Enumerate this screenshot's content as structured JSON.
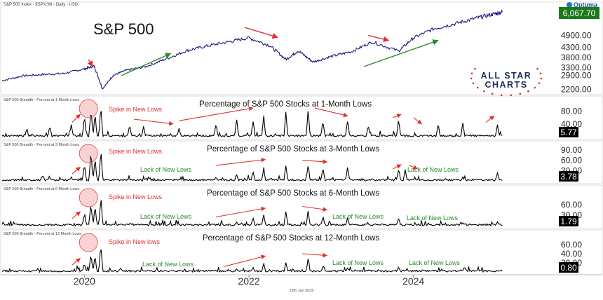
{
  "header": {
    "source_line": "S&P 500 Index - $SPX.WI - Daily - USD",
    "brand": "Optuma",
    "footer_date": "29th Jan 2025",
    "logo_line1": "ALL STAR",
    "logo_line2": "CHARTS"
  },
  "colors": {
    "price_line": "#1a1a7a",
    "breadth_line": "#000000",
    "annotation_red": "#e03030",
    "annotation_green": "#2a8a2a",
    "last_price_bg": "#1a7a1a",
    "last_value_bg": "#000000",
    "logo_navy": "#1f2f5a",
    "logo_red": "#d23030"
  },
  "x_axis": {
    "labels": [
      "2020",
      "2022",
      "2024"
    ],
    "label_positions": [
      2020.0,
      2022.0,
      2024.0
    ],
    "range": [
      2019.0,
      2025.75
    ]
  },
  "chart_data": [
    {
      "type": "line",
      "panel": "price",
      "header": "S&P 500 Index - $SPX.WI - Daily - USD",
      "title": "S&P 500",
      "ylim": [
        2050,
        6250
      ],
      "yticks": [
        "4900.00",
        "4300.00",
        "3800.00",
        "3300.00",
        "2900.00",
        "2200.00"
      ],
      "ytick_values": [
        4900,
        4300,
        3800,
        3300,
        2900,
        2200
      ],
      "last_value": "6,067.70",
      "x": [
        2019.0,
        2019.25,
        2019.5,
        2019.75,
        2020.0,
        2020.12,
        2020.22,
        2020.35,
        2020.5,
        2020.75,
        2021.0,
        2021.25,
        2021.5,
        2021.75,
        2022.0,
        2022.25,
        2022.45,
        2022.6,
        2022.78,
        2023.0,
        2023.25,
        2023.5,
        2023.82,
        2024.0,
        2024.25,
        2024.5,
        2024.75,
        2024.95,
        2025.08
      ],
      "y": [
        2640,
        2880,
        2950,
        3000,
        3230,
        3370,
        2240,
        2900,
        3150,
        3350,
        3740,
        4150,
        4380,
        4580,
        4780,
        4400,
        3700,
        4130,
        3580,
        3850,
        4100,
        4580,
        4120,
        4780,
        5240,
        5480,
        5750,
        5950,
        6067
      ],
      "annotations": {
        "arrows": [
          {
            "color": "red",
            "from": [
              2020.05,
              3700
            ],
            "to": [
              2020.1,
              3350
            ]
          },
          {
            "color": "green",
            "from": [
              2020.45,
              2900
            ],
            "to": [
              2021.05,
              4000
            ]
          },
          {
            "color": "red",
            "from": [
              2021.95,
              5300
            ],
            "to": [
              2022.35,
              4800
            ]
          },
          {
            "color": "red",
            "from": [
              2023.45,
              4900
            ],
            "to": [
              2023.7,
              4650
            ]
          },
          {
            "color": "green",
            "from": [
              2023.4,
              3350
            ],
            "to": [
              2024.3,
              4650
            ]
          }
        ]
      }
    },
    {
      "type": "line",
      "panel": "breadth_1m",
      "header": "S&P 500 Breadth - Percent at 1 Month Lows",
      "title": "Percentage of S&P 500 Stocks at 1-Month Lows",
      "ylim": [
        0,
        110
      ],
      "yticks": [
        "80.00",
        "40.00"
      ],
      "ytick_values": [
        80,
        40
      ],
      "last_value": "5.77",
      "spikes": [
        {
          "x": 2020.0,
          "y": 70
        },
        {
          "x": 2020.08,
          "y": 96
        },
        {
          "x": 2020.13,
          "y": 80
        },
        {
          "x": 2020.2,
          "y": 102
        },
        {
          "x": 2019.58,
          "y": 40
        },
        {
          "x": 2019.3,
          "y": 30
        },
        {
          "x": 2019.84,
          "y": 42
        },
        {
          "x": 2020.55,
          "y": 42
        },
        {
          "x": 2020.72,
          "y": 35
        },
        {
          "x": 2021.15,
          "y": 30
        },
        {
          "x": 2021.6,
          "y": 48
        },
        {
          "x": 2021.85,
          "y": 60
        },
        {
          "x": 2022.05,
          "y": 63
        },
        {
          "x": 2022.18,
          "y": 70
        },
        {
          "x": 2022.45,
          "y": 82
        },
        {
          "x": 2022.72,
          "y": 98
        },
        {
          "x": 2022.9,
          "y": 58
        },
        {
          "x": 2023.2,
          "y": 60
        },
        {
          "x": 2023.45,
          "y": 38
        },
        {
          "x": 2023.82,
          "y": 60
        },
        {
          "x": 2024.3,
          "y": 45
        },
        {
          "x": 2024.6,
          "y": 52
        },
        {
          "x": 2025.02,
          "y": 45
        }
      ],
      "labels": [
        {
          "text": "Spike in New Lows",
          "color": "red"
        }
      ],
      "circle_x": 2020.05,
      "arrows": [
        {
          "color": "red",
          "from": [
            2019.85,
            45
          ],
          "to": [
            2019.95,
            70
          ]
        },
        {
          "color": "red",
          "from": [
            2020.6,
            55
          ],
          "to": [
            2021.08,
            40
          ]
        },
        {
          "color": "red",
          "from": [
            2021.15,
            50
          ],
          "to": [
            2022.05,
            90
          ]
        },
        {
          "color": "red",
          "from": [
            2022.8,
            90
          ],
          "to": [
            2023.2,
            65
          ]
        },
        {
          "color": "red",
          "from": [
            2023.75,
            60
          ],
          "to": [
            2023.85,
            70
          ]
        },
        {
          "color": "red",
          "from": [
            2024.0,
            60
          ],
          "to": [
            2024.1,
            40
          ]
        },
        {
          "color": "red",
          "from": [
            2024.88,
            45
          ],
          "to": [
            2024.98,
            65
          ]
        }
      ]
    },
    {
      "type": "line",
      "panel": "breadth_3m",
      "header": "S&P 500 Breadth - Percent at 3 Month Lows",
      "title": "Percentage of S&P 500 Stocks at 3-Month Lows",
      "ylim": [
        0,
        100
      ],
      "yticks": [
        "90.00",
        "60.00",
        "30.00"
      ],
      "ytick_values": [
        90,
        60,
        30
      ],
      "last_value": "3.78",
      "spikes": [
        {
          "x": 2020.0,
          "y": 55
        },
        {
          "x": 2020.08,
          "y": 88
        },
        {
          "x": 2020.13,
          "y": 70
        },
        {
          "x": 2020.2,
          "y": 96
        },
        {
          "x": 2019.58,
          "y": 10
        },
        {
          "x": 2019.84,
          "y": 12
        },
        {
          "x": 2021.6,
          "y": 12
        },
        {
          "x": 2021.85,
          "y": 22
        },
        {
          "x": 2022.05,
          "y": 30
        },
        {
          "x": 2022.18,
          "y": 40
        },
        {
          "x": 2022.45,
          "y": 50
        },
        {
          "x": 2022.72,
          "y": 55
        },
        {
          "x": 2022.9,
          "y": 40
        },
        {
          "x": 2023.2,
          "y": 45
        },
        {
          "x": 2023.82,
          "y": 40
        },
        {
          "x": 2023.9,
          "y": 35
        },
        {
          "x": 2024.6,
          "y": 12
        },
        {
          "x": 2025.02,
          "y": 25
        }
      ],
      "labels": [
        {
          "text": "Spike in New Lows",
          "color": "red"
        },
        {
          "text": "Lack of New Lows",
          "color": "green"
        },
        {
          "text": "Lack of New Lows",
          "color": "green"
        }
      ],
      "circle_x": 2020.05,
      "arrows": [
        {
          "color": "red",
          "from": [
            2019.85,
            20
          ],
          "to": [
            2019.95,
            40
          ]
        },
        {
          "color": "red",
          "from": [
            2021.6,
            45
          ],
          "to": [
            2022.2,
            62
          ]
        },
        {
          "color": "red",
          "from": [
            2022.65,
            60
          ],
          "to": [
            2022.95,
            55
          ]
        },
        {
          "color": "red",
          "from": [
            2023.75,
            35
          ],
          "to": [
            2023.85,
            47
          ]
        },
        {
          "color": "red",
          "from": [
            2023.95,
            45
          ],
          "to": [
            2024.05,
            35
          ]
        }
      ]
    },
    {
      "type": "line",
      "panel": "breadth_6m",
      "header": "S&P 500 Breadth - Percent at 6 Month Lows",
      "title": "Percentage of S&P 500 Stocks at 6-Month Lows",
      "ylim": [
        0,
        100
      ],
      "yticks": [
        "60.00",
        "30.00"
      ],
      "ytick_values": [
        60,
        30
      ],
      "last_value": "1.79",
      "spikes": [
        {
          "x": 2020.0,
          "y": 40
        },
        {
          "x": 2020.08,
          "y": 75
        },
        {
          "x": 2020.13,
          "y": 60
        },
        {
          "x": 2020.2,
          "y": 92
        },
        {
          "x": 2021.85,
          "y": 12
        },
        {
          "x": 2022.05,
          "y": 25
        },
        {
          "x": 2022.18,
          "y": 35
        },
        {
          "x": 2022.45,
          "y": 45
        },
        {
          "x": 2022.72,
          "y": 50
        },
        {
          "x": 2022.9,
          "y": 30
        },
        {
          "x": 2023.2,
          "y": 25
        },
        {
          "x": 2023.82,
          "y": 25
        },
        {
          "x": 2024.6,
          "y": 10
        },
        {
          "x": 2025.02,
          "y": 12
        }
      ],
      "labels": [
        {
          "text": "Spike in New Lows",
          "color": "red"
        },
        {
          "text": "Lack of New Lows",
          "color": "green"
        },
        {
          "text": "Lack of New Lows",
          "color": "green"
        },
        {
          "text": "Lack of New Lows",
          "color": "green"
        }
      ],
      "circle_x": 2020.05,
      "arrows": [
        {
          "color": "red",
          "from": [
            2019.85,
            20
          ],
          "to": [
            2019.95,
            40
          ]
        },
        {
          "color": "red",
          "from": [
            2021.6,
            25
          ],
          "to": [
            2022.2,
            50
          ]
        },
        {
          "color": "red",
          "from": [
            2022.65,
            55
          ],
          "to": [
            2022.95,
            45
          ]
        }
      ]
    },
    {
      "type": "line",
      "panel": "breadth_12m",
      "header": "S&P 500 Breadth - Percent at 12 Month Lows",
      "title": "Percentage of S&P 500 Stocks at 12-Month Lows",
      "ylim": [
        0,
        80
      ],
      "yticks": [
        "60.00",
        "40.00",
        "20.00"
      ],
      "ytick_values": [
        60,
        40,
        20
      ],
      "last_value": "0.80",
      "spikes": [
        {
          "x": 2020.0,
          "y": 20
        },
        {
          "x": 2020.08,
          "y": 45
        },
        {
          "x": 2020.13,
          "y": 40
        },
        {
          "x": 2020.2,
          "y": 70
        },
        {
          "x": 2021.85,
          "y": 8
        },
        {
          "x": 2022.05,
          "y": 12
        },
        {
          "x": 2022.18,
          "y": 20
        },
        {
          "x": 2022.45,
          "y": 25
        },
        {
          "x": 2022.72,
          "y": 35
        },
        {
          "x": 2022.9,
          "y": 12
        },
        {
          "x": 2023.2,
          "y": 10
        },
        {
          "x": 2023.82,
          "y": 12
        },
        {
          "x": 2024.6,
          "y": 4
        },
        {
          "x": 2025.02,
          "y": 4
        }
      ],
      "labels": [
        {
          "text": "Spike in New lows",
          "color": "red"
        },
        {
          "text": "Lack of New Lows",
          "color": "green"
        },
        {
          "text": "Lack of New Lows",
          "color": "green"
        },
        {
          "text": "Lack of New Lows",
          "color": "green"
        }
      ],
      "circle_x": 2020.05,
      "arrows": [
        {
          "color": "red",
          "from": [
            2019.85,
            15
          ],
          "to": [
            2019.95,
            30
          ]
        },
        {
          "color": "red",
          "from": [
            2021.7,
            12
          ],
          "to": [
            2022.2,
            35
          ]
        },
        {
          "color": "red",
          "from": [
            2022.65,
            40
          ],
          "to": [
            2022.95,
            36
          ]
        }
      ]
    }
  ]
}
